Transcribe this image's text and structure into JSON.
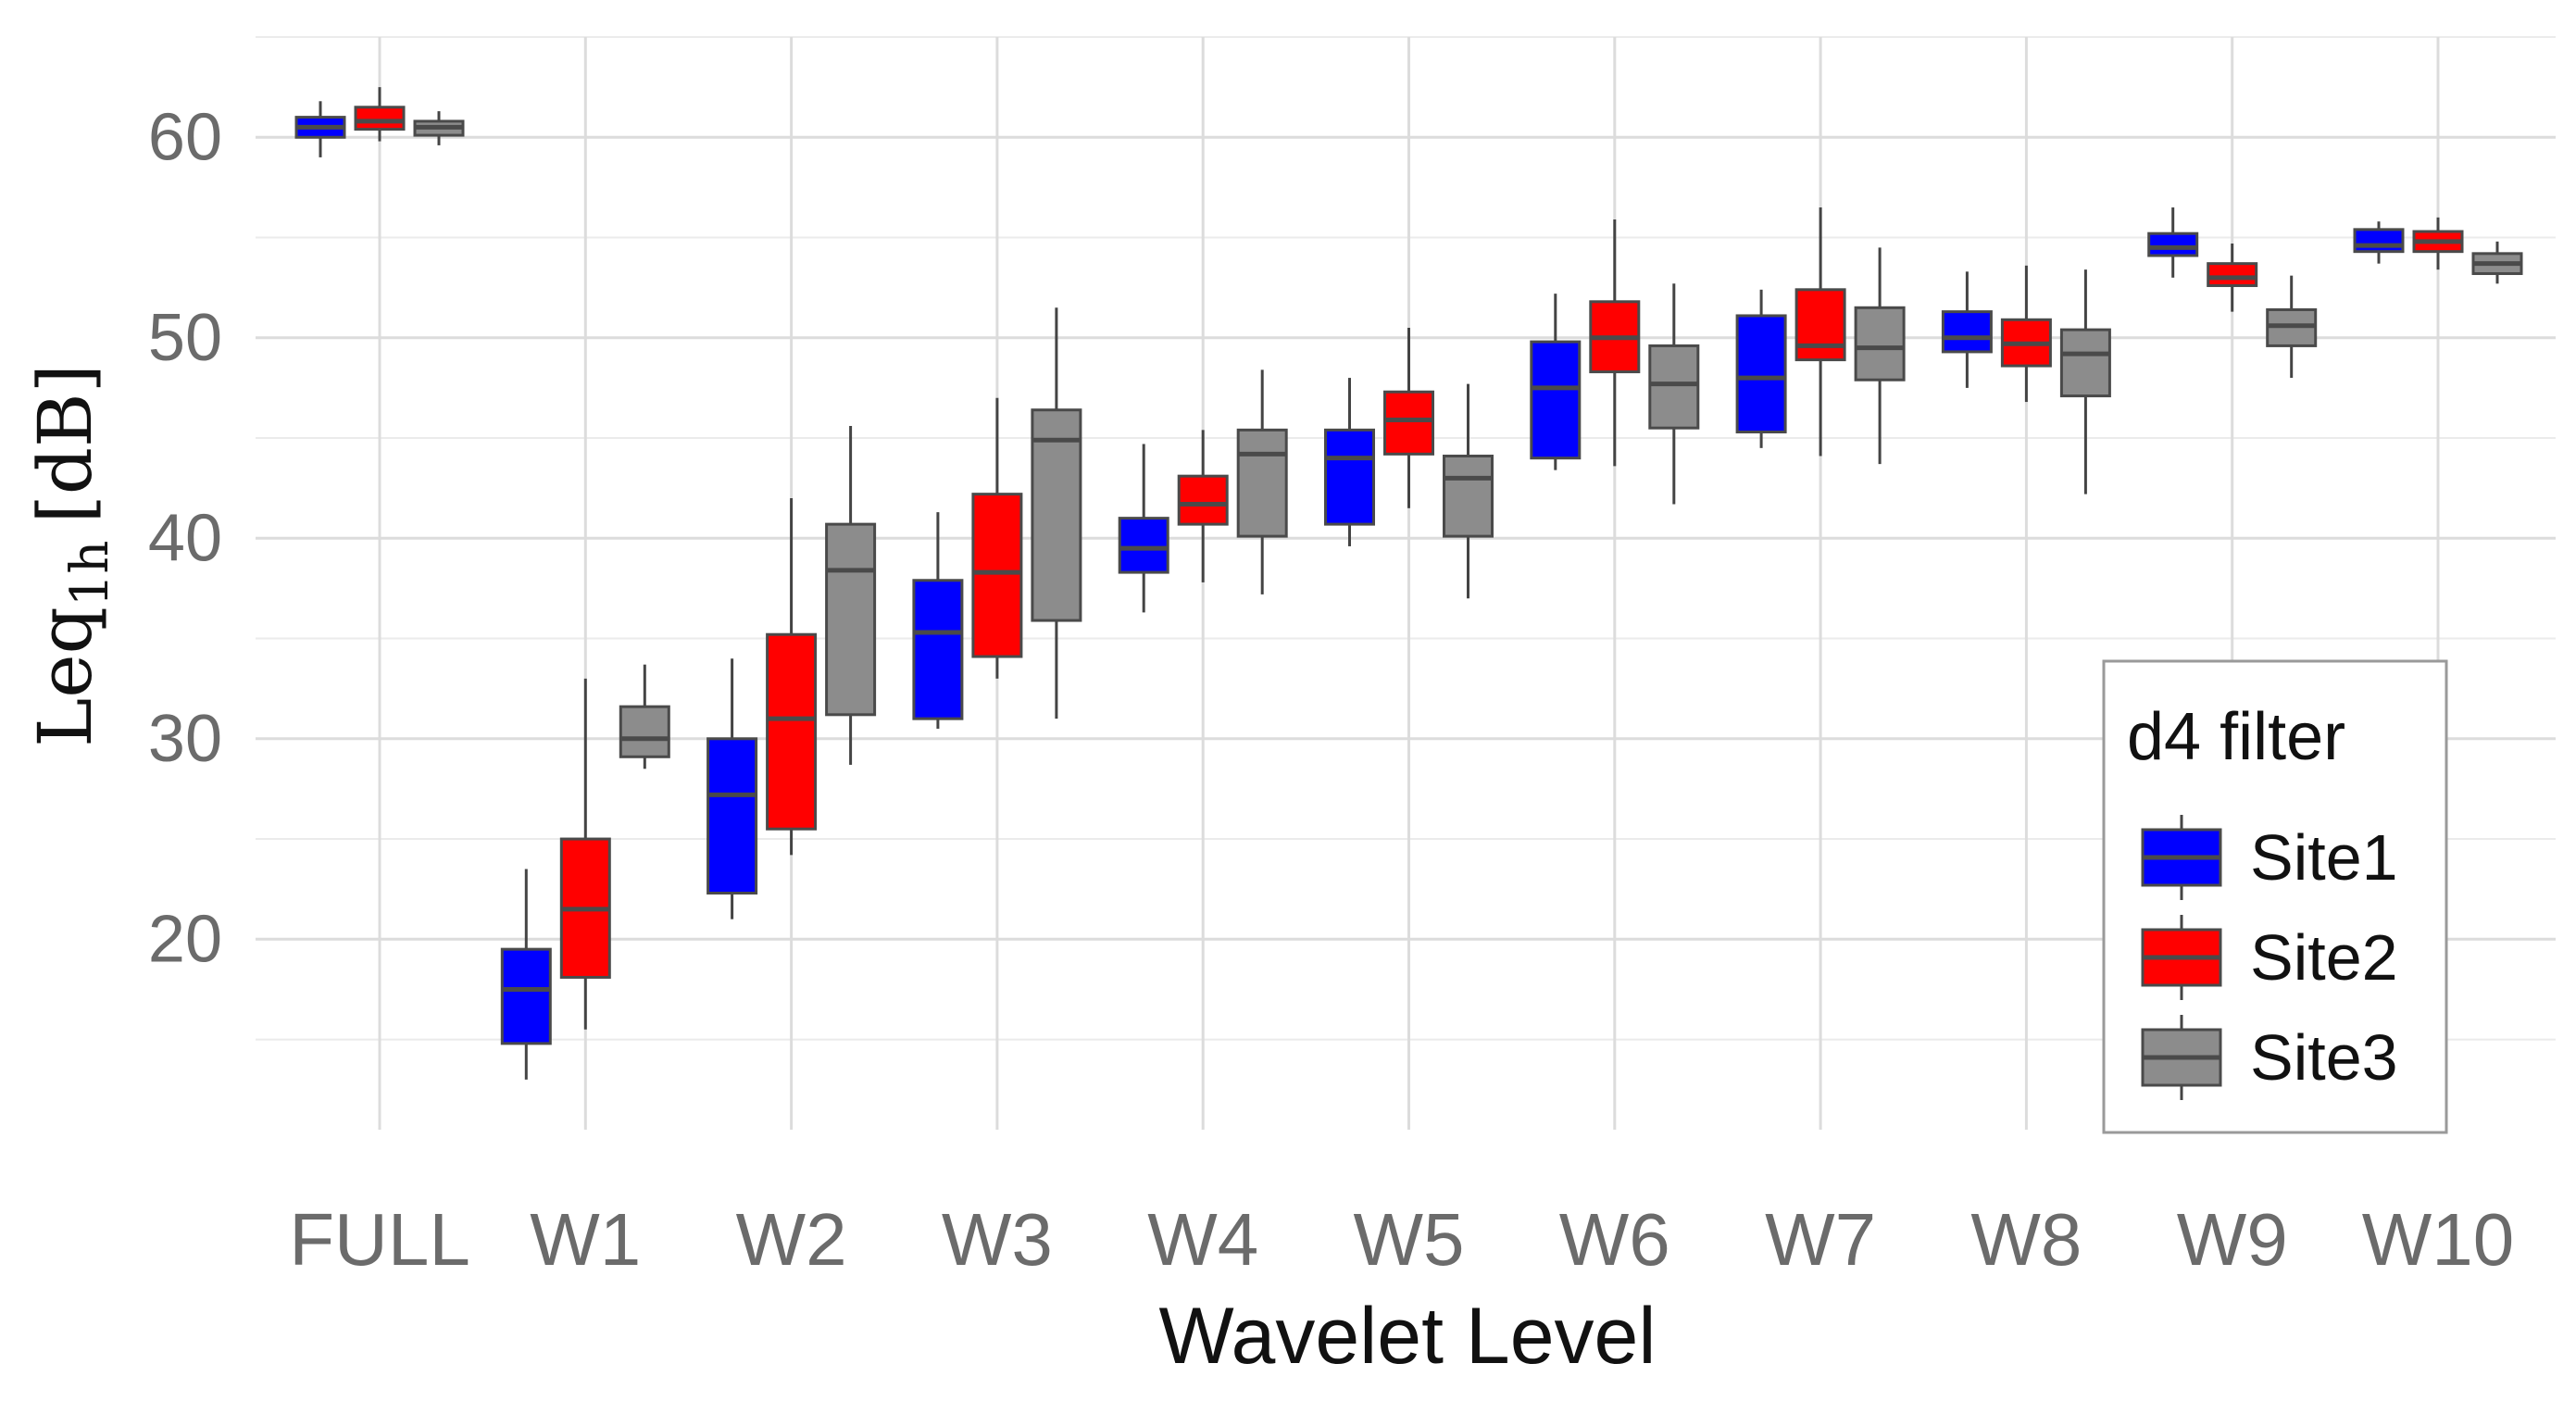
{
  "chart_data": {
    "type": "boxplot",
    "xlabel": "Wavelet Level",
    "ylabel": {
      "main": "Leq",
      "subscript": "1h",
      "unit": "[dB]"
    },
    "ylim": [
      10.5,
      65
    ],
    "yticks": [
      20,
      30,
      40,
      50,
      60
    ],
    "grid": true,
    "categories": [
      "FULL",
      "W1",
      "W2",
      "W3",
      "W4",
      "W5",
      "W6",
      "W7",
      "W8",
      "W9",
      "W10"
    ],
    "legend": {
      "title": "d4 filter",
      "position": "bottom-right"
    },
    "series": [
      {
        "name": "Site1",
        "color": "#0000ff",
        "boxes": [
          {
            "min": 59.0,
            "q1": 60.0,
            "median": 60.5,
            "q3": 61.0,
            "max": 61.8
          },
          {
            "min": 13.0,
            "q1": 14.8,
            "median": 17.5,
            "q3": 19.5,
            "max": 23.5
          },
          {
            "min": 21.0,
            "q1": 22.3,
            "median": 27.2,
            "q3": 30.0,
            "max": 34.0
          },
          {
            "min": 30.5,
            "q1": 31.0,
            "median": 35.3,
            "q3": 37.9,
            "max": 41.3
          },
          {
            "min": 36.3,
            "q1": 38.3,
            "median": 39.5,
            "q3": 41.0,
            "max": 44.7
          },
          {
            "min": 39.6,
            "q1": 40.7,
            "median": 44.0,
            "q3": 45.4,
            "max": 48.0
          },
          {
            "min": 43.4,
            "q1": 44.0,
            "median": 47.5,
            "q3": 49.8,
            "max": 52.2
          },
          {
            "min": 44.5,
            "q1": 45.3,
            "median": 48.0,
            "q3": 51.1,
            "max": 52.4
          },
          {
            "min": 47.5,
            "q1": 49.3,
            "median": 50.0,
            "q3": 51.3,
            "max": 53.3
          },
          {
            "min": 53.0,
            "q1": 54.1,
            "median": 54.5,
            "q3": 55.2,
            "max": 56.5
          },
          {
            "min": 53.7,
            "q1": 54.3,
            "median": 54.6,
            "q3": 55.4,
            "max": 55.8
          }
        ]
      },
      {
        "name": "Site2",
        "color": "#ff0000",
        "boxes": [
          {
            "min": 59.8,
            "q1": 60.4,
            "median": 60.8,
            "q3": 61.5,
            "max": 62.5
          },
          {
            "min": 15.5,
            "q1": 18.1,
            "median": 21.5,
            "q3": 25.0,
            "max": 33.0
          },
          {
            "min": 24.2,
            "q1": 25.5,
            "median": 31.0,
            "q3": 35.2,
            "max": 42.0
          },
          {
            "min": 33.0,
            "q1": 34.1,
            "median": 38.3,
            "q3": 42.2,
            "max": 47.0
          },
          {
            "min": 37.8,
            "q1": 40.7,
            "median": 41.7,
            "q3": 43.1,
            "max": 45.4
          },
          {
            "min": 41.5,
            "q1": 44.2,
            "median": 45.9,
            "q3": 47.3,
            "max": 50.5
          },
          {
            "min": 43.6,
            "q1": 48.3,
            "median": 50.0,
            "q3": 51.8,
            "max": 55.9
          },
          {
            "min": 44.1,
            "q1": 48.9,
            "median": 49.6,
            "q3": 52.4,
            "max": 56.5
          },
          {
            "min": 46.8,
            "q1": 48.6,
            "median": 49.7,
            "q3": 50.9,
            "max": 53.6
          },
          {
            "min": 51.3,
            "q1": 52.6,
            "median": 53.0,
            "q3": 53.7,
            "max": 54.7
          },
          {
            "min": 53.4,
            "q1": 54.3,
            "median": 54.8,
            "q3": 55.3,
            "max": 56.0
          }
        ]
      },
      {
        "name": "Site3",
        "color": "#8c8c8c",
        "boxes": [
          {
            "min": 59.6,
            "q1": 60.1,
            "median": 60.5,
            "q3": 60.8,
            "max": 61.3
          },
          {
            "min": 28.5,
            "q1": 29.1,
            "median": 30.0,
            "q3": 31.6,
            "max": 33.7
          },
          {
            "min": 28.7,
            "q1": 31.2,
            "median": 38.4,
            "q3": 40.7,
            "max": 45.6
          },
          {
            "min": 31.0,
            "q1": 35.9,
            "median": 44.9,
            "q3": 46.4,
            "max": 51.5
          },
          {
            "min": 37.2,
            "q1": 40.1,
            "median": 44.2,
            "q3": 45.4,
            "max": 48.4
          },
          {
            "min": 37.0,
            "q1": 40.1,
            "median": 43.0,
            "q3": 44.1,
            "max": 47.7
          },
          {
            "min": 41.7,
            "q1": 45.5,
            "median": 47.7,
            "q3": 49.6,
            "max": 52.7
          },
          {
            "min": 43.7,
            "q1": 47.9,
            "median": 49.5,
            "q3": 51.5,
            "max": 54.5
          },
          {
            "min": 42.2,
            "q1": 47.1,
            "median": 49.2,
            "q3": 50.4,
            "max": 53.4
          },
          {
            "min": 48.0,
            "q1": 49.6,
            "median": 50.6,
            "q3": 51.4,
            "max": 53.1
          },
          {
            "min": 52.7,
            "q1": 53.2,
            "median": 53.7,
            "q3": 54.2,
            "max": 54.8
          }
        ]
      }
    ]
  }
}
